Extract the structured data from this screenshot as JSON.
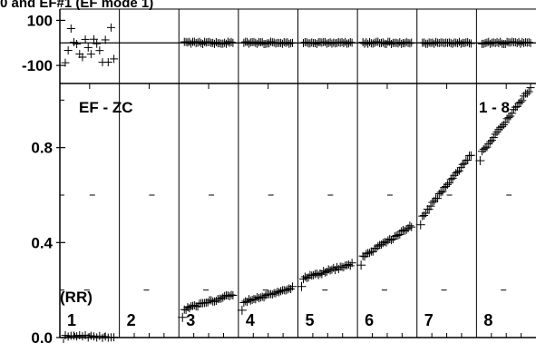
{
  "chart_data": {
    "type": "scatter",
    "title": "0 and EF#1 (EF mode 1)",
    "top_panel": {
      "yticks": [
        {
          "value": 100,
          "label": "100"
        },
        {
          "value": -100,
          "label": "-100"
        }
      ],
      "ylim": [
        -180,
        150
      ],
      "residual_amplitude": [
        55,
        6,
        5,
        5,
        5,
        5,
        5
      ]
    },
    "bottom_panel": {
      "label_left": "EF - ZC",
      "label_right": "1 - 8",
      "group_tag": "(RR)",
      "yticks": [
        {
          "value": 0.0,
          "label": "0.0"
        },
        {
          "value": 0.4,
          "label": "0.4"
        },
        {
          "value": 0.8,
          "label": "0.8"
        }
      ],
      "ylim": [
        0,
        1.07
      ]
    },
    "segments": [
      {
        "label": "1",
        "y_start": 0.01,
        "y_end": 0.0,
        "count": 18
      },
      {
        "label": "2",
        "y_start": null,
        "y_end": null,
        "count": 0
      },
      {
        "label": "3",
        "y_start": 0.12,
        "y_end": 0.18,
        "count": 30
      },
      {
        "label": "4",
        "y_start": 0.15,
        "y_end": 0.21,
        "count": 30
      },
      {
        "label": "5",
        "y_start": 0.25,
        "y_end": 0.31,
        "count": 30
      },
      {
        "label": "6",
        "y_start": 0.34,
        "y_end": 0.47,
        "count": 30
      },
      {
        "label": "7",
        "y_start": 0.51,
        "y_end": 0.77,
        "count": 30
      },
      {
        "label": "8",
        "y_start": 0.78,
        "y_end": 1.05,
        "count": 30
      }
    ]
  }
}
